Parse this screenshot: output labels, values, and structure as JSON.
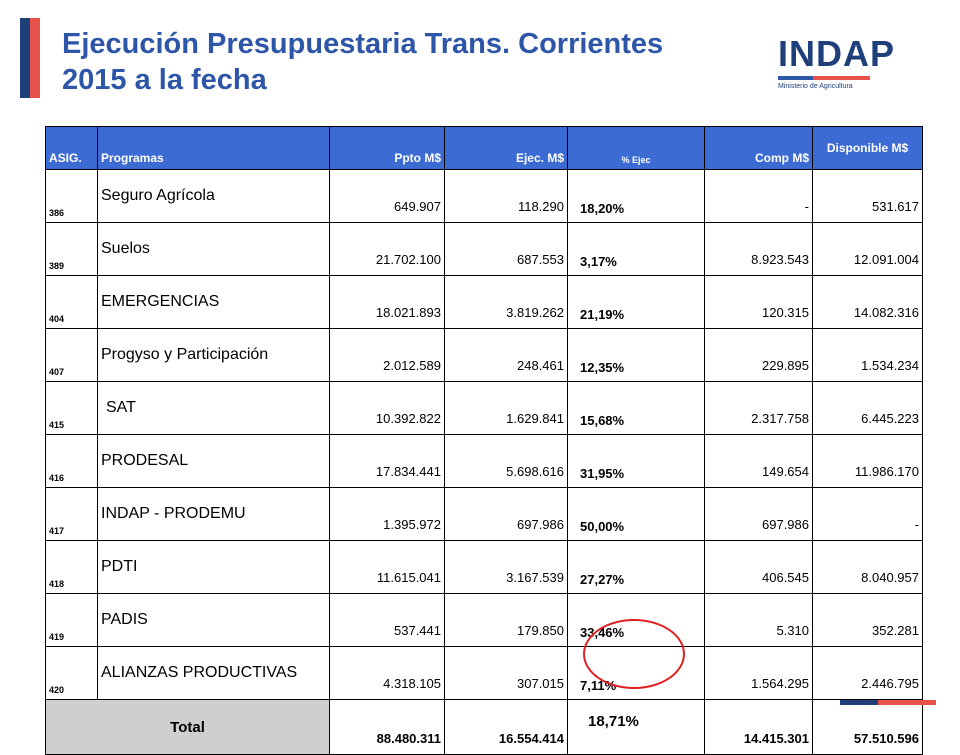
{
  "header": {
    "title_line1": "Ejecución Presupuestaria Trans. Corrientes",
    "title_line2": "2015 a la fecha"
  },
  "logo": {
    "text": "INDAP",
    "subtitle": "Ministerio de Agricultura"
  },
  "table": {
    "columns": {
      "asig": "ASIG.",
      "programas": "Programas",
      "ppto": "Ppto M$",
      "ejec": "Ejec. M$",
      "pct": "% Ejec",
      "comp": "Comp M$",
      "disp": "Disponible M$"
    },
    "rows": [
      {
        "asig": "386",
        "programa": "Seguro Agrícola",
        "ppto": "649.907",
        "ejec": "118.290",
        "pct": "18,20%",
        "comp": "-",
        "disp": "531.617"
      },
      {
        "asig": "389",
        "programa": "Suelos",
        "ppto": "21.702.100",
        "ejec": "687.553",
        "pct": "3,17%",
        "comp": "8.923.543",
        "disp": "12.091.004"
      },
      {
        "asig": "404",
        "programa": "EMERGENCIAS",
        "ppto": "18.021.893",
        "ejec": "3.819.262",
        "pct": "21,19%",
        "comp": "120.315",
        "disp": "14.082.316"
      },
      {
        "asig": "407",
        "programa": "Progyso y Participación",
        "ppto": "2.012.589",
        "ejec": "248.461",
        "pct": "12,35%",
        "comp": "229.895",
        "disp": "1.534.234"
      },
      {
        "asig": "415",
        "programa": "SAT",
        "ppto": "10.392.822",
        "ejec": "1.629.841",
        "pct": "15,68%",
        "comp": "2.317.758",
        "disp": "6.445.223"
      },
      {
        "asig": "416",
        "programa": "PRODESAL",
        "ppto": "17.834.441",
        "ejec": "5.698.616",
        "pct": "31,95%",
        "comp": "149.654",
        "disp": "11.986.170"
      },
      {
        "asig": "417",
        "programa": "INDAP - PRODEMU",
        "ppto": "1.395.972",
        "ejec": "697.986",
        "pct": "50,00%",
        "comp": "697.986",
        "disp": "-"
      },
      {
        "asig": "418",
        "programa": "PDTI",
        "ppto": "11.615.041",
        "ejec": "3.167.539",
        "pct": "27,27%",
        "comp": "406.545",
        "disp": "8.040.957"
      },
      {
        "asig": "419",
        "programa": "PADIS",
        "ppto": "537.441",
        "ejec": "179.850",
        "pct": "33,46%",
        "comp": "5.310",
        "disp": "352.281"
      },
      {
        "asig": "420",
        "programa": "ALIANZAS PRODUCTIVAS",
        "ppto": "4.318.105",
        "ejec": "307.015",
        "pct": "7,11%",
        "comp": "1.564.295",
        "disp": "2.446.795"
      }
    ],
    "total": {
      "label": "Total",
      "ppto": "88.480.311",
      "ejec": "16.554.414",
      "pct": "18,71%",
      "comp": "14.415.301",
      "disp": "57.510.596"
    }
  },
  "colors": {
    "title": "#2e56a8",
    "header_bg": "#3c6bd3",
    "accent_red": "#e8524a",
    "accent_navy": "#1f3f7a",
    "highlight_circle": "#e02020"
  }
}
